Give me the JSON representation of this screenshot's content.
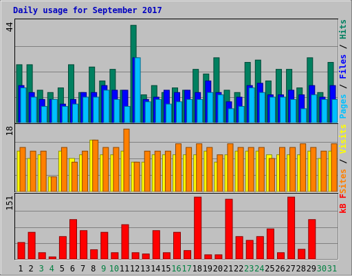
{
  "chart_data": [
    {
      "type": "bar",
      "title": "Daily usage for September 2017",
      "ylabel_parts": [
        "Pages",
        "Files",
        "Hits"
      ],
      "ylabel_sep": " / ",
      "ymax_label": "44",
      "ylim": [
        0,
        44
      ],
      "categories": [
        "1",
        "2",
        "3",
        "4",
        "5",
        "6",
        "7",
        "8",
        "9",
        "10",
        "11",
        "12",
        "13",
        "14",
        "15",
        "16",
        "17",
        "18",
        "19",
        "20",
        "21",
        "22",
        "23",
        "24",
        "25",
        "26",
        "27",
        "28",
        "29",
        "30",
        "31"
      ],
      "x_label_colors": [
        "#000000",
        "#000000",
        "#008040",
        "#008040",
        "#000000",
        "#000000",
        "#000000",
        "#000000",
        "#008040",
        "#008040",
        "#000000",
        "#000000",
        "#000000",
        "#000000",
        "#000000",
        "#008040",
        "#008040",
        "#000000",
        "#000000",
        "#000000",
        "#000000",
        "#000000",
        "#008040",
        "#008040",
        "#000000",
        "#000000",
        "#000000",
        "#000000",
        "#000000",
        "#008040",
        "#008040"
      ],
      "series": [
        {
          "name": "Hits",
          "color": "#008060",
          "values": [
            25,
            25,
            14,
            13,
            15,
            25,
            13,
            24,
            18,
            23,
            14,
            42,
            12,
            16,
            13,
            15,
            14,
            23,
            21,
            28,
            14,
            13,
            26,
            27,
            18,
            23,
            23,
            15,
            28,
            13,
            26
          ]
        },
        {
          "name": "Files",
          "color": "#0000ff",
          "values": [
            16,
            13,
            10,
            10,
            8,
            10,
            13,
            13,
            16,
            14,
            14,
            28,
            10,
            11,
            14,
            13,
            14,
            13,
            18,
            13,
            9,
            11,
            16,
            17,
            12,
            12,
            14,
            12,
            16,
            11,
            16
          ]
        },
        {
          "name": "Pages",
          "color": "#00c0ff",
          "values": [
            15,
            11,
            7,
            10,
            7,
            8,
            11,
            11,
            14,
            10,
            7,
            28,
            9,
            10,
            8,
            9,
            10,
            10,
            13,
            12,
            6,
            7,
            15,
            13,
            11,
            11,
            10,
            6,
            12,
            10,
            10
          ]
        }
      ]
    },
    {
      "type": "bar",
      "ylabel_parts": [
        "Sites",
        "Visits"
      ],
      "ylabel_sep": " / ",
      "ymax_label": "18",
      "ylim": [
        0,
        18
      ],
      "categories": [
        "1",
        "2",
        "3",
        "4",
        "5",
        "6",
        "7",
        "8",
        "9",
        "10",
        "11",
        "12",
        "13",
        "14",
        "15",
        "16",
        "17",
        "18",
        "19",
        "20",
        "21",
        "22",
        "23",
        "24",
        "25",
        "26",
        "27",
        "28",
        "29",
        "30",
        "31"
      ],
      "series": [
        {
          "name": "Visits",
          "color": "#ffff00",
          "values": [
            11,
            9,
            10,
            4,
            11,
            9,
            10,
            14,
            10,
            10,
            11,
            8,
            8,
            10,
            10,
            10,
            10,
            10,
            11,
            8,
            10,
            11,
            11,
            11,
            10,
            10,
            10,
            10,
            11,
            9,
            11
          ]
        },
        {
          "name": "Sites",
          "color": "#ff8000",
          "values": [
            12,
            11,
            11,
            4,
            12,
            8,
            11,
            14,
            12,
            12,
            17,
            8,
            11,
            11,
            11,
            13,
            12,
            13,
            12,
            10,
            13,
            12,
            12,
            12,
            9,
            12,
            12,
            13,
            12,
            11,
            13
          ]
        }
      ]
    },
    {
      "type": "bar",
      "ylabel_parts": [
        "kB F"
      ],
      "ymax_label": "151",
      "ylim": [
        0,
        151
      ],
      "categories": [
        "1",
        "2",
        "3",
        "4",
        "5",
        "6",
        "7",
        "8",
        "9",
        "10",
        "11",
        "12",
        "13",
        "14",
        "15",
        "16",
        "17",
        "18",
        "19",
        "20",
        "21",
        "22",
        "23",
        "24",
        "25",
        "26",
        "27",
        "28",
        "29",
        "30",
        "31"
      ],
      "series": [
        {
          "name": "kB F",
          "color": "#ff0000",
          "values": [
            39,
            63,
            15,
            5,
            53,
            93,
            67,
            22,
            63,
            15,
            81,
            15,
            12,
            67,
            15,
            63,
            20,
            146,
            10,
            10,
            141,
            53,
            44,
            53,
            71,
            15,
            146,
            23,
            93,
            0,
            0
          ]
        }
      ]
    }
  ]
}
